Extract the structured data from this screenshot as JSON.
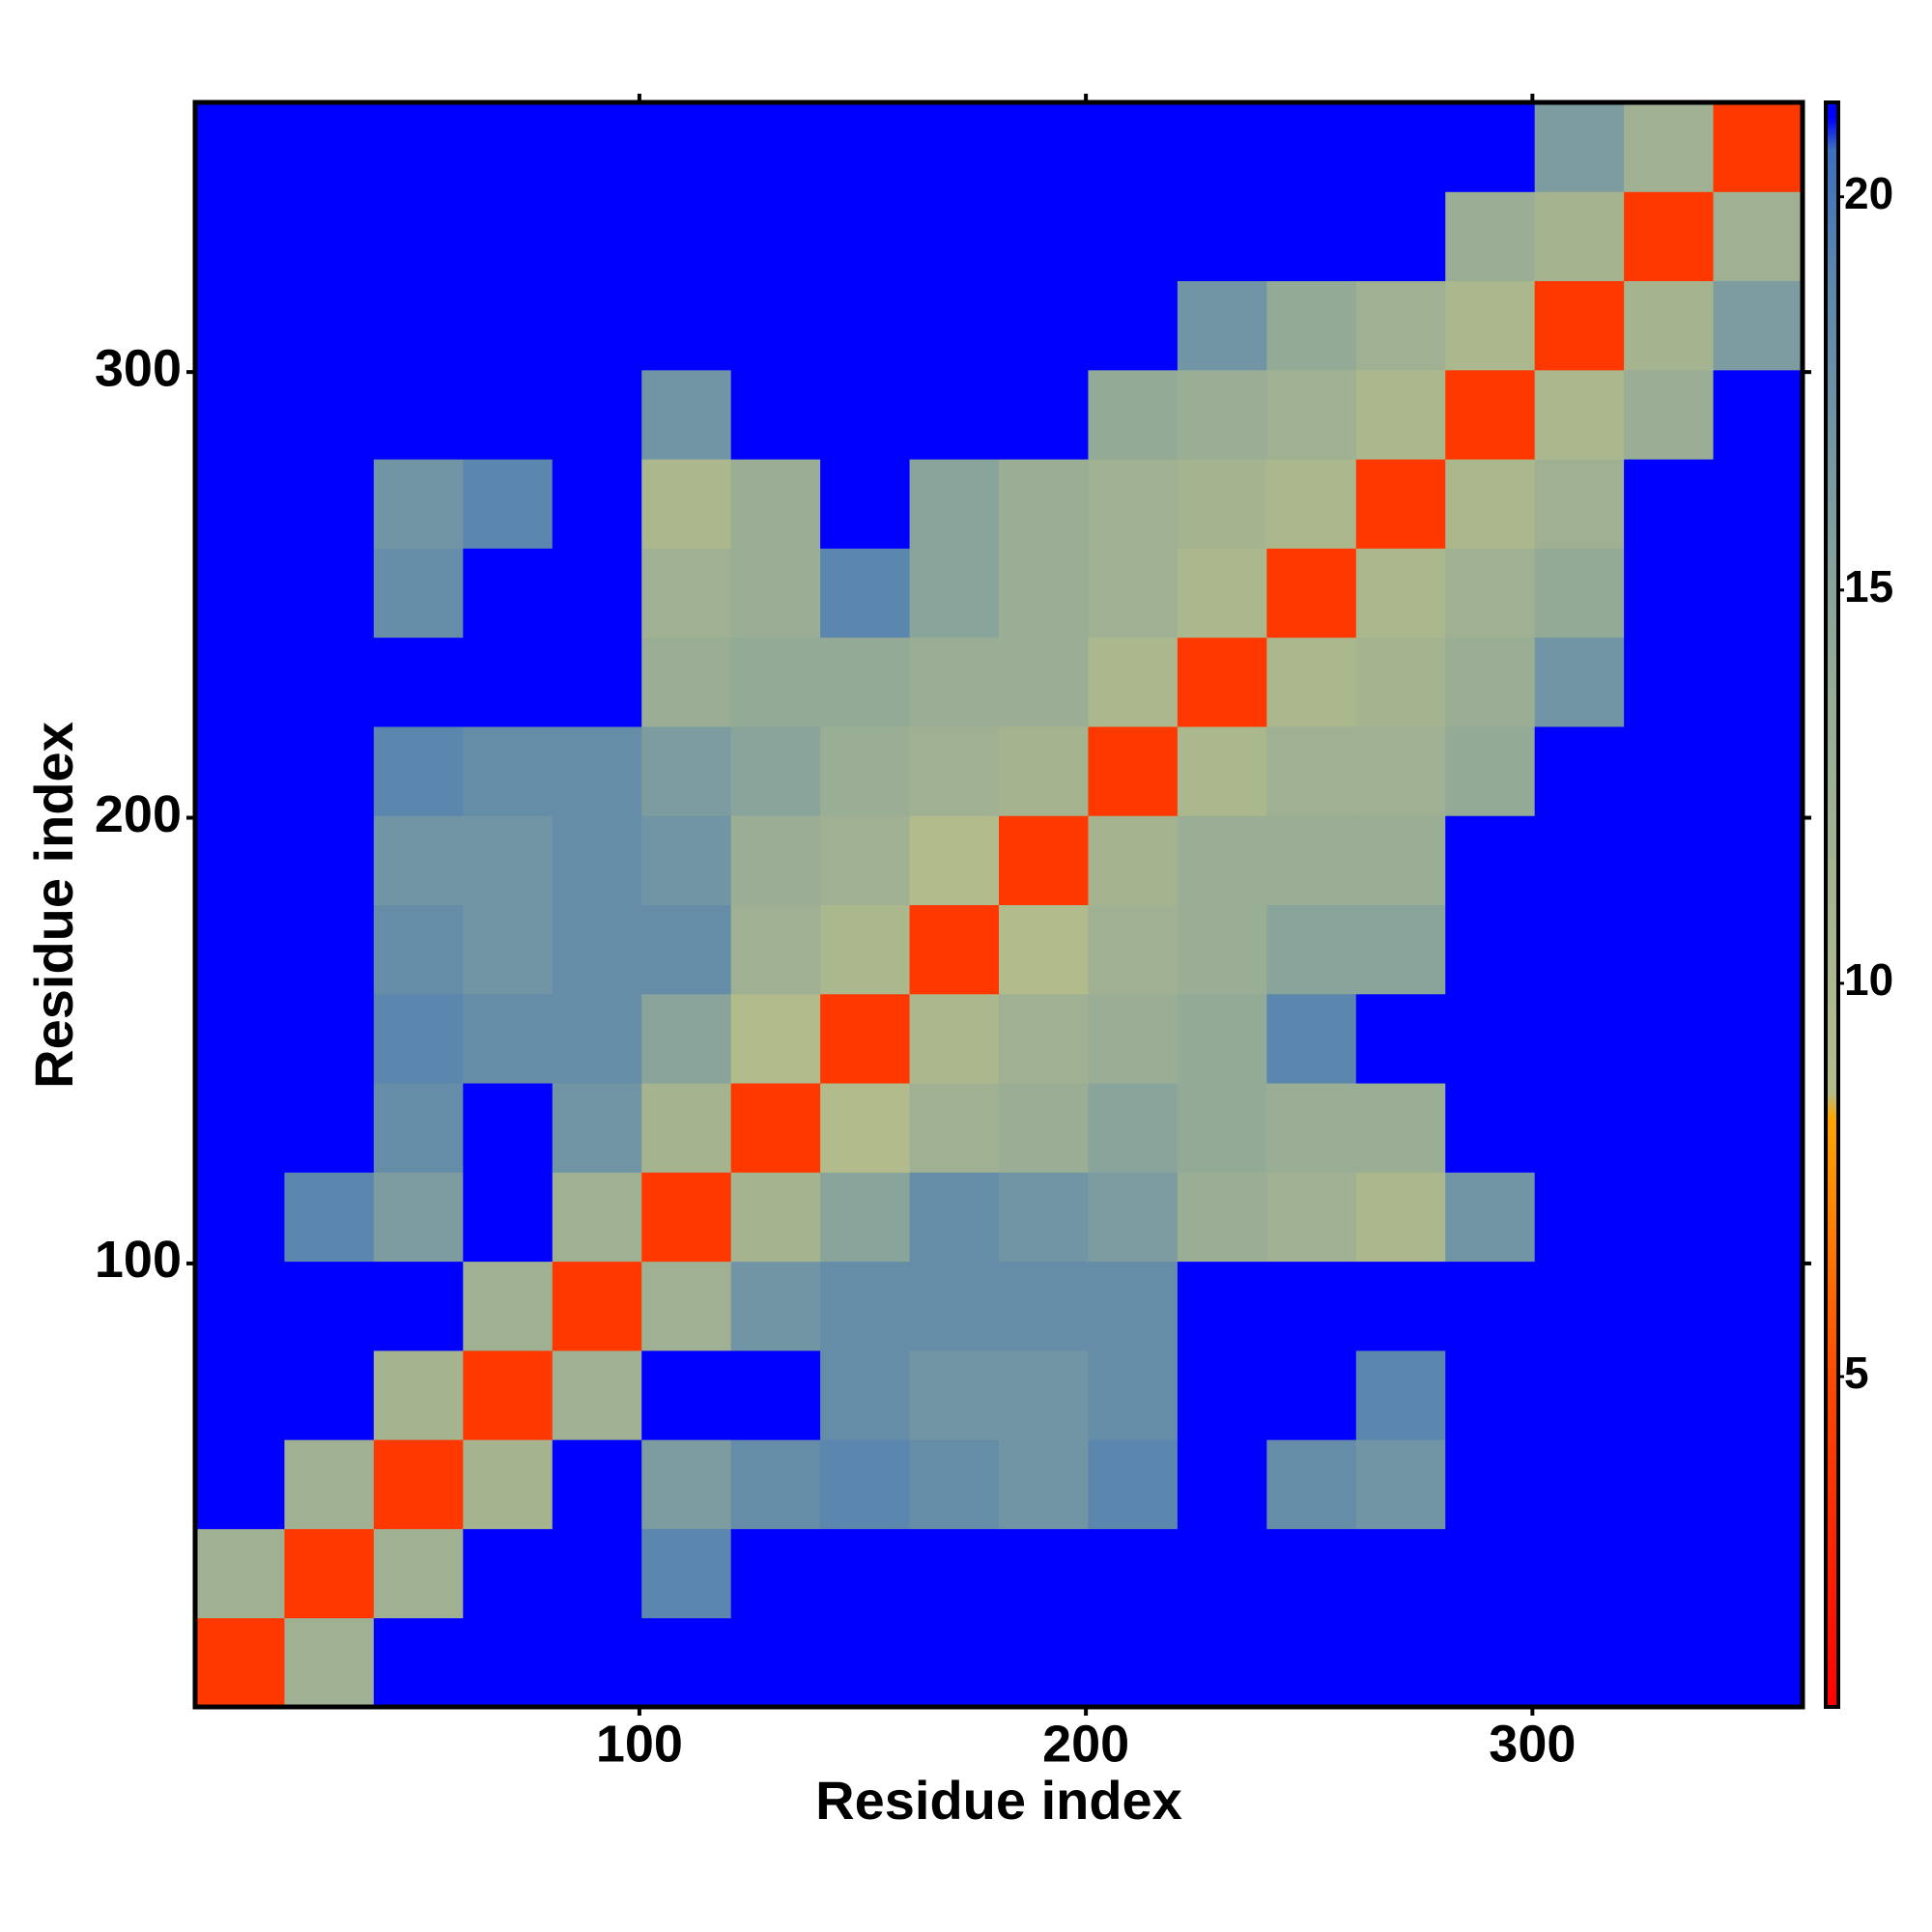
{
  "chart_data": {
    "type": "heatmap",
    "x_label": "Residue index",
    "y_label": "Residue index",
    "x_bins": [
      0.5,
      20.5,
      40.5,
      60.5,
      80.5,
      100.5,
      120.5,
      140.5,
      160.5,
      180.5,
      200.5,
      220.5,
      240.5,
      260.5,
      280.5,
      300.5,
      320.5,
      340.5,
      360.5
    ],
    "y_bins": [
      0.5,
      20.5,
      40.5,
      60.5,
      80.5,
      100.5,
      120.5,
      140.5,
      160.5,
      180.5,
      200.5,
      220.5,
      240.5,
      260.5,
      280.5,
      300.5,
      320.5,
      340.5,
      360.5
    ],
    "values": [
      [
        4,
        12,
        21,
        21,
        21,
        21,
        21,
        21,
        21,
        21,
        21,
        21,
        21,
        21,
        21,
        21,
        21,
        21
      ],
      [
        12,
        4,
        12,
        21,
        21,
        19,
        21,
        21,
        21,
        21,
        21,
        21,
        21,
        21,
        21,
        21,
        21,
        21
      ],
      [
        21,
        12,
        4,
        11,
        21,
        16,
        18,
        19,
        18,
        17,
        19,
        21,
        18,
        17,
        21,
        21,
        21,
        21
      ],
      [
        21,
        21,
        11,
        4,
        12,
        21,
        21,
        18,
        17,
        17,
        18,
        21,
        21,
        19,
        21,
        21,
        21,
        21
      ],
      [
        21,
        21,
        21,
        12,
        4,
        12,
        17,
        18,
        18,
        18,
        18,
        21,
        21,
        21,
        21,
        21,
        21,
        21
      ],
      [
        21,
        19,
        16,
        21,
        12,
        4,
        11,
        15,
        18,
        17,
        16,
        13,
        12,
        10,
        17,
        21,
        21,
        21
      ],
      [
        21,
        21,
        18,
        21,
        17,
        11,
        4,
        9,
        12,
        13,
        15,
        14,
        13,
        13,
        21,
        21,
        21,
        21
      ],
      [
        21,
        21,
        19,
        18,
        18,
        15,
        9,
        4,
        10,
        12,
        13,
        14,
        19,
        21,
        21,
        21,
        21,
        21
      ],
      [
        21,
        21,
        18,
        17,
        18,
        18,
        12,
        10,
        4,
        9,
        12,
        13,
        15,
        15,
        21,
        21,
        21,
        21
      ],
      [
        21,
        21,
        17,
        17,
        18,
        17,
        13,
        12,
        9,
        4,
        11,
        13,
        13,
        13,
        21,
        21,
        21,
        21
      ],
      [
        21,
        21,
        19,
        18,
        18,
        16,
        15,
        13,
        12,
        11,
        4,
        10,
        12,
        12,
        14,
        21,
        21,
        21
      ],
      [
        21,
        21,
        21,
        21,
        21,
        13,
        14,
        14,
        13,
        13,
        10,
        4,
        10,
        11,
        13,
        17,
        21,
        21
      ],
      [
        21,
        21,
        18,
        21,
        21,
        12,
        13,
        19,
        15,
        13,
        12,
        10,
        4,
        10,
        12,
        14,
        21,
        21
      ],
      [
        21,
        21,
        17,
        19,
        21,
        10,
        13,
        21,
        15,
        13,
        12,
        11,
        10,
        4,
        10,
        12,
        21,
        21
      ],
      [
        21,
        21,
        21,
        21,
        21,
        17,
        21,
        21,
        21,
        21,
        14,
        13,
        12,
        10,
        4,
        10,
        13,
        21
      ],
      [
        21,
        21,
        21,
        21,
        21,
        21,
        21,
        21,
        21,
        21,
        21,
        17,
        14,
        12,
        10,
        4,
        11,
        16
      ],
      [
        21,
        21,
        21,
        21,
        21,
        21,
        21,
        21,
        21,
        21,
        21,
        21,
        21,
        21,
        13,
        11,
        4,
        12
      ],
      [
        21,
        21,
        21,
        21,
        21,
        21,
        21,
        21,
        21,
        21,
        21,
        21,
        21,
        21,
        21,
        16,
        12,
        4
      ]
    ],
    "xlim": [
      0.5,
      360.5
    ],
    "ylim": [
      0.5,
      360.5
    ],
    "xticks": [
      100,
      200,
      300
    ],
    "yticks": [
      100,
      200,
      300
    ],
    "colorscale": [
      {
        "value": 0.8,
        "color": "#ff0000"
      },
      {
        "value": 5,
        "color": "#ff4a00"
      },
      {
        "value": 8.3,
        "color": "#ffa500"
      },
      {
        "value": 8.6,
        "color": "#b4bc8a"
      },
      {
        "value": 14,
        "color": "#93ab96"
      },
      {
        "value": 19,
        "color": "#5b86ad"
      },
      {
        "value": 20.6,
        "color": "#3b6fbf"
      },
      {
        "value": 21,
        "color": "#0000ff"
      }
    ],
    "colorbar_lim": [
      0.8,
      21.2
    ],
    "colorbar_ticks": [
      5,
      10,
      15,
      20
    ]
  }
}
